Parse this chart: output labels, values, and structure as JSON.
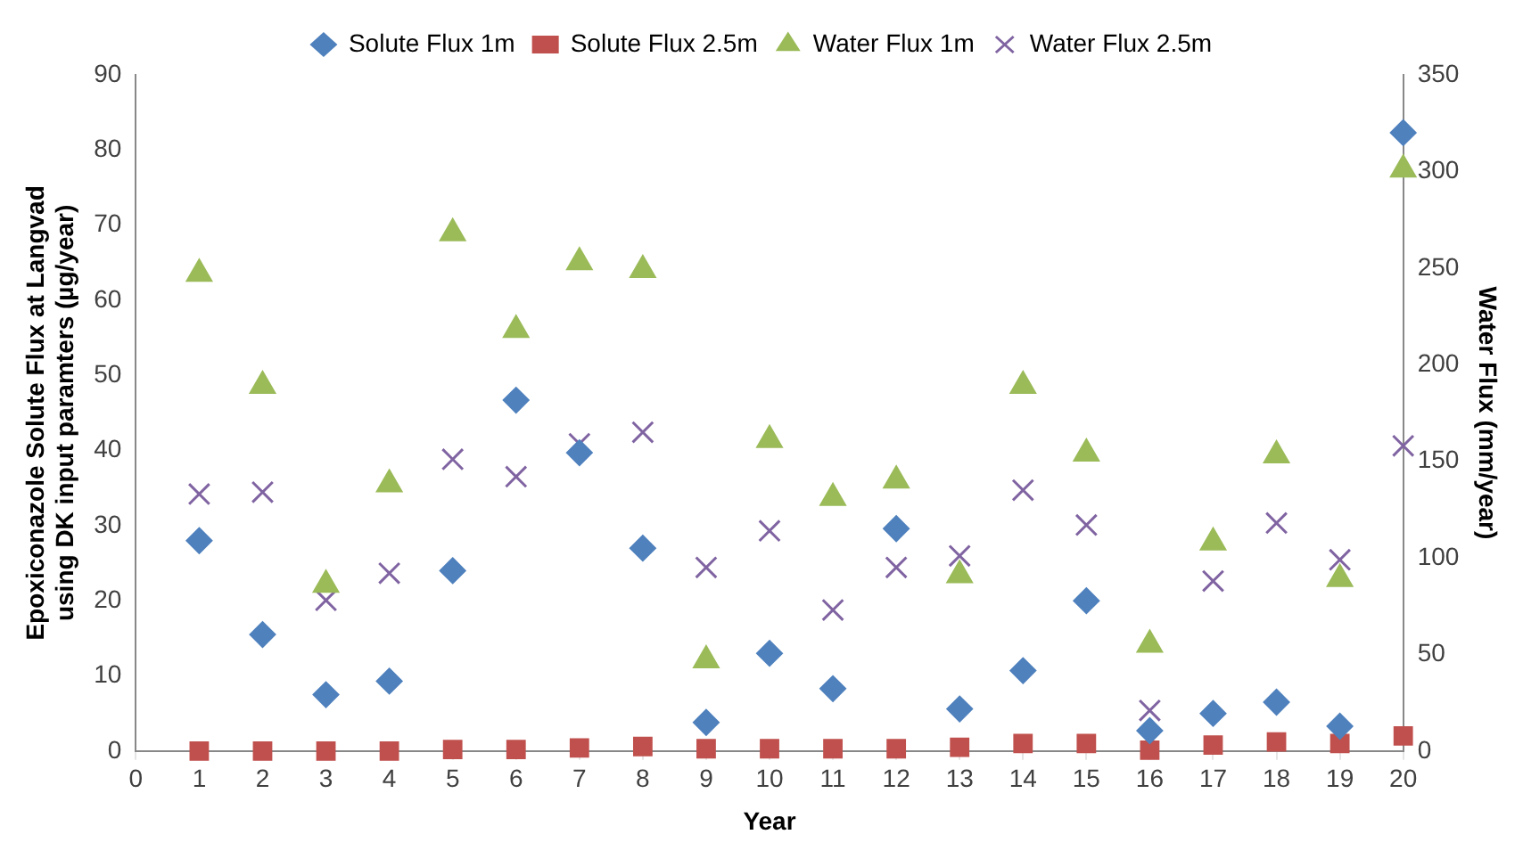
{
  "chart_data": {
    "type": "scatter",
    "xlabel": "Year",
    "ylabel": "Epoxiconazole Solute Flux at Langvad using DK input paramters (µg/year)",
    "y2label": "Water Flux (mm/year)",
    "x": [
      1,
      2,
      3,
      4,
      5,
      6,
      7,
      8,
      9,
      10,
      11,
      12,
      13,
      14,
      15,
      16,
      17,
      18,
      19,
      20
    ],
    "series": [
      {
        "name": "Solute Flux 1m",
        "color": "#4f81bd",
        "marker": "diamond",
        "values": [
          28,
          15.5,
          7.5,
          9.3,
          24,
          46.7,
          39.7,
          27,
          3.8,
          13,
          8.3,
          29.6,
          5.6,
          10.7,
          20,
          2.7,
          5,
          6.5,
          3.3,
          82.3
        ]
      },
      {
        "name": "Solute Flux 2.5m",
        "color": "#c0504d",
        "marker": "square",
        "values": [
          0,
          0,
          0,
          0,
          0.2,
          0.2,
          0.4,
          0.6,
          0.3,
          0.3,
          0.3,
          0.3,
          0.5,
          1,
          1,
          0.1,
          0.8,
          1.2,
          1,
          2
        ]
      },
      {
        "name": "Water Flux 1m",
        "color": "#9bbb59",
        "marker": "triangle",
        "axis": "y2",
        "values": [
          247,
          189,
          86,
          138,
          268,
          218,
          253,
          249,
          47,
          161,
          131,
          140,
          91,
          189,
          154,
          55,
          108,
          153,
          89,
          301
        ]
      },
      {
        "name": "Water Flux 2.5m",
        "color": "#8064a2",
        "marker": "cross",
        "axis": "y2",
        "values": [
          133,
          134,
          78,
          92,
          151,
          142,
          159,
          165,
          95,
          114,
          73,
          95,
          101,
          135,
          117,
          21,
          88,
          118,
          99,
          158
        ]
      }
    ],
    "xlim": [
      0,
      20
    ],
    "xticks": [
      0,
      1,
      2,
      3,
      4,
      5,
      6,
      7,
      8,
      9,
      10,
      11,
      12,
      13,
      14,
      15,
      16,
      17,
      18,
      19,
      20
    ],
    "ylim": [
      0,
      90
    ],
    "yticks": [
      0,
      10,
      20,
      30,
      40,
      50,
      60,
      70,
      80,
      90
    ],
    "y2lim": [
      0,
      350
    ],
    "y2ticks": [
      0,
      50,
      100,
      150,
      200,
      250,
      300,
      350
    ],
    "grid": false,
    "legend": "top"
  }
}
